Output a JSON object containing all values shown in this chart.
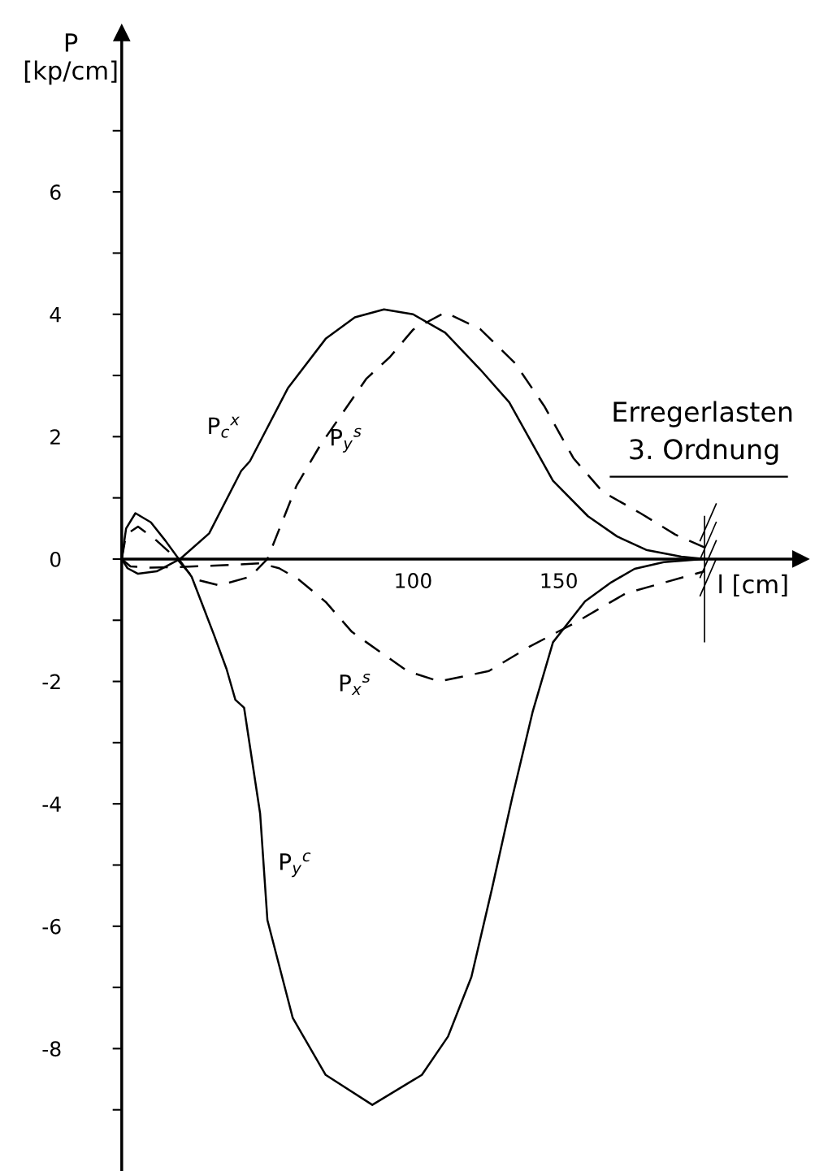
{
  "chart_data": {
    "type": "line",
    "title": "Erregerlasten",
    "subtitle": "3. Ordnung",
    "xlabel": "l [cm]",
    "ylabel": "P\n[kp/cm]",
    "xlim": [
      0,
      233
    ],
    "ylim": [
      -10,
      8.6
    ],
    "xticks": [
      100,
      150
    ],
    "yticks": [
      {
        "value": -9,
        "label": null
      },
      -8,
      {
        "value": -7,
        "label": null
      },
      -6,
      {
        "value": -5,
        "label": null
      },
      -4,
      {
        "value": -3,
        "label": null
      },
      -2,
      {
        "value": -1,
        "label": null
      },
      0,
      {
        "value": 1,
        "label": null
      },
      2,
      {
        "value": 3,
        "label": null
      },
      4,
      {
        "value": 5,
        "label": null
      },
      6,
      {
        "value": 7,
        "label": null
      }
    ],
    "grid": false,
    "series": [
      {
        "name": "P$_{c}$$^{x}$",
        "color": "#000000",
        "line_style": "solid",
        "x": [
          0,
          2,
          5.6,
          12,
          20,
          30,
          41,
          44,
          57,
          70,
          80,
          90,
          100,
          111,
          123,
          133,
          148,
          160,
          170,
          180,
          192,
          200
        ],
        "values": [
          0,
          -0.15,
          -0.24,
          -0.2,
          0,
          0.42,
          1.44,
          1.6,
          2.79,
          3.6,
          3.95,
          4.08,
          4.0,
          3.7,
          3.1,
          2.56,
          1.28,
          0.7,
          0.37,
          0.15,
          0.04,
          0
        ]
      },
      {
        "name": "P$_{y}$$^{s}$",
        "color": "#000000",
        "line_style": "dashed",
        "x": [
          0,
          1.5,
          5.6,
          12,
          19,
          25,
          33.5,
          44,
          50,
          60,
          68,
          76,
          84,
          92,
          100,
          111,
          123,
          135,
          145,
          155,
          165,
          178,
          190,
          200
        ],
        "values": [
          0,
          0.4,
          0.53,
          0.3,
          0,
          -0.33,
          -0.43,
          -0.29,
          0,
          1.2,
          1.85,
          2.4,
          2.95,
          3.3,
          3.75,
          4.03,
          3.76,
          3.2,
          2.5,
          1.65,
          1.1,
          0.75,
          0.4,
          0.19
        ]
      },
      {
        "name": "P$_{x}$$^{s}$",
        "color": "#000000",
        "line_style": "dashed",
        "x": [
          0,
          3,
          10,
          20,
          30,
          40,
          47.5,
          54,
          60.6,
          70,
          79,
          84,
          98,
          109,
          126,
          140,
          156,
          173,
          200
        ],
        "values": [
          0,
          -0.12,
          -0.14,
          -0.13,
          -0.11,
          -0.09,
          -0.07,
          -0.15,
          -0.33,
          -0.7,
          -1.19,
          -1.36,
          -1.83,
          -2.0,
          -1.83,
          -1.43,
          -1.03,
          -0.56,
          -0.2
        ]
      },
      {
        "name": "P$_{y}$$^{c}$",
        "color": "#000000",
        "line_style": "solid",
        "x": [
          0,
          1.5,
          4.7,
          10,
          15,
          19.6,
          24,
          31.6,
          36,
          39,
          42,
          47.5,
          50,
          58.7,
          70,
          86,
          103,
          112,
          120,
          127,
          134,
          141,
          148,
          159,
          168,
          176,
          186,
          200
        ],
        "values": [
          0,
          0.5,
          0.75,
          0.6,
          0.3,
          0,
          -0.29,
          -1.23,
          -1.8,
          -2.3,
          -2.43,
          -4.16,
          -5.9,
          -7.5,
          -8.43,
          -8.92,
          -8.43,
          -7.8,
          -6.83,
          -5.4,
          -3.9,
          -2.5,
          -1.36,
          -0.69,
          -0.38,
          -0.16,
          -0.05,
          0
        ]
      }
    ],
    "ref_lines": [
      {
        "axis": "x",
        "value": 200,
        "label": null,
        "color": "#000000",
        "line_style": "solid"
      }
    ]
  }
}
